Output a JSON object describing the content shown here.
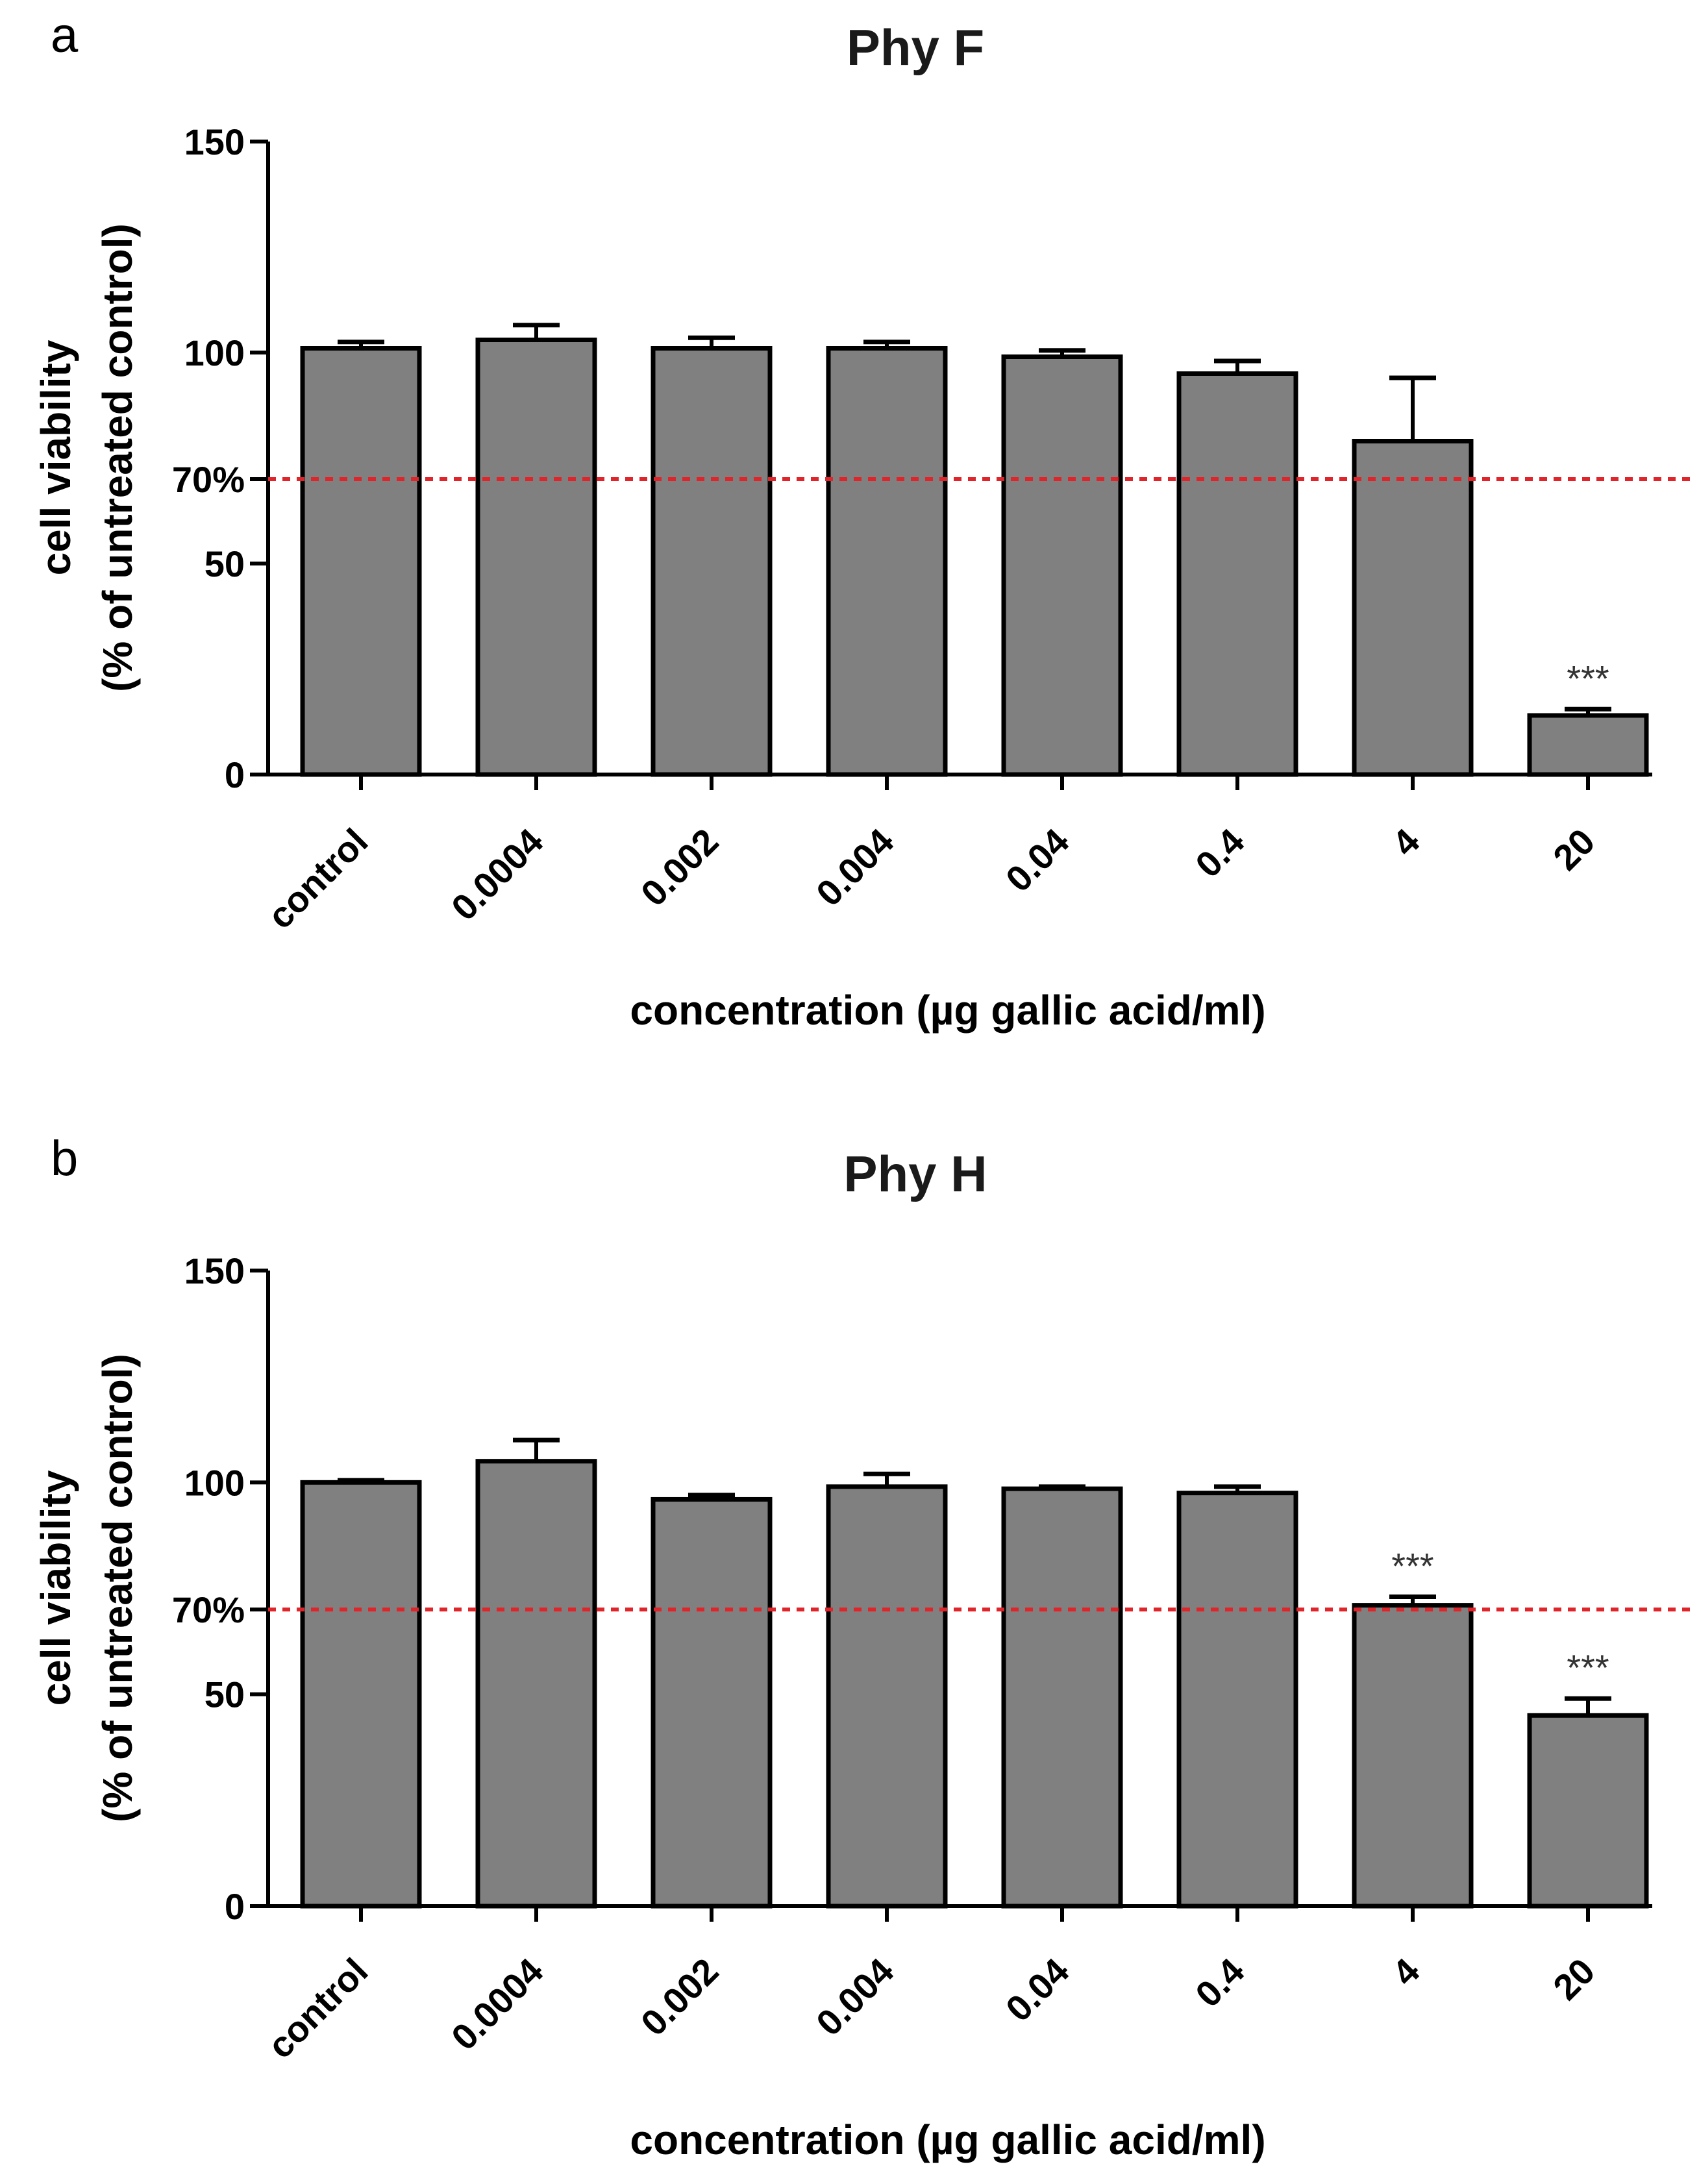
{
  "chart_data": [
    {
      "type": "bar",
      "panel_label": "a",
      "title": "Phy F",
      "categories": [
        "control",
        "0.0004",
        "0.002",
        "0.004",
        "0.04",
        "0.4",
        "4",
        "20"
      ],
      "values": [
        101,
        103,
        101,
        101,
        99,
        95,
        79,
        14
      ],
      "errors": [
        1.5,
        3.5,
        2.5,
        1.5,
        1.5,
        3,
        15,
        1.5
      ],
      "significance": [
        "",
        "",
        "",
        "",
        "",
        "",
        "",
        "***"
      ],
      "xlabel": "concentration (µg gallic acid/ml)",
      "ylabel": "cell viability",
      "ylabel2": "(% of untreated control)",
      "ylim": [
        0,
        150
      ],
      "yticks": [
        0,
        50,
        100,
        150
      ],
      "reference_line": {
        "value": 70,
        "label": "70%",
        "color": "#e0242a"
      },
      "bar_color": "#808080"
    },
    {
      "type": "bar",
      "panel_label": "b",
      "title": "Phy H",
      "categories": [
        "control",
        "0.0004",
        "0.002",
        "0.004",
        "0.04",
        "0.4",
        "4",
        "20"
      ],
      "values": [
        100,
        105,
        96,
        99,
        98.5,
        97.5,
        71,
        45
      ],
      "errors": [
        0.5,
        5,
        1,
        3,
        0.5,
        1.5,
        2,
        4
      ],
      "significance": [
        "",
        "",
        "",
        "",
        "",
        "",
        "***",
        "***"
      ],
      "xlabel": "concentration (µg gallic acid/ml)",
      "ylabel": "cell viability",
      "ylabel2": "(% of untreated control)",
      "ylim": [
        0,
        150
      ],
      "yticks": [
        0,
        50,
        100,
        150
      ],
      "reference_line": {
        "value": 70,
        "label": "70%",
        "color": "#e0242a"
      },
      "bar_color": "#808080"
    }
  ]
}
